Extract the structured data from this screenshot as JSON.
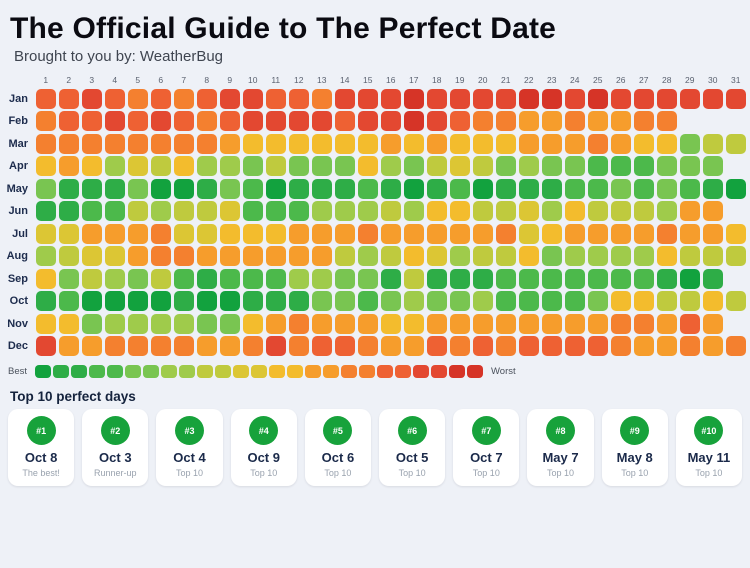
{
  "header": {
    "title": "The Official Guide to The Perfect Date",
    "subtitle": "Brought to you by: WeatherBug"
  },
  "legend": {
    "best_label": "Best",
    "worst_label": "Worst",
    "steps": 25
  },
  "top10": {
    "heading": "Top 10 perfect days",
    "badge_color": "#17a23b",
    "cards": [
      {
        "rank": "#1",
        "date": "Oct 8",
        "note": "The best!"
      },
      {
        "rank": "#2",
        "date": "Oct 3",
        "note": "Runner-up"
      },
      {
        "rank": "#3",
        "date": "Oct 4",
        "note": "Top 10"
      },
      {
        "rank": "#4",
        "date": "Oct 9",
        "note": "Top 10"
      },
      {
        "rank": "#5",
        "date": "Oct 6",
        "note": "Top 10"
      },
      {
        "rank": "#6",
        "date": "Oct 5",
        "note": "Top 10"
      },
      {
        "rank": "#7",
        "date": "Oct 7",
        "note": "Top 10"
      },
      {
        "rank": "#8",
        "date": "May 7",
        "note": "Top 10"
      },
      {
        "rank": "#9",
        "date": "May 8",
        "note": "Top 10"
      },
      {
        "rank": "#10",
        "date": "May 11",
        "note": "Top 10"
      }
    ]
  },
  "chart_data": {
    "type": "heatmap",
    "title": "The Official Guide to The Perfect Date",
    "x_labels": [
      "1",
      "2",
      "3",
      "4",
      "5",
      "6",
      "7",
      "8",
      "9",
      "10",
      "11",
      "12",
      "13",
      "14",
      "15",
      "16",
      "17",
      "18",
      "19",
      "20",
      "21",
      "22",
      "23",
      "24",
      "25",
      "26",
      "27",
      "28",
      "29",
      "30",
      "31"
    ],
    "y_labels": [
      "Jan",
      "Feb",
      "Mar",
      "Apr",
      "May",
      "Jun",
      "Jul",
      "Aug",
      "Sep",
      "Oct",
      "Nov",
      "Dec"
    ],
    "scale": {
      "best": 0,
      "worst": 12,
      "palette": [
        "#12a23e",
        "#2ead47",
        "#4cb94b",
        "#79c551",
        "#9fcb4b",
        "#bfca3e",
        "#dcc634",
        "#f3bc2d",
        "#f69d2c",
        "#f4802f",
        "#ee6133",
        "#e34831",
        "#d63427"
      ]
    },
    "values": [
      [
        10,
        10,
        11,
        10,
        9,
        10,
        9,
        10,
        11,
        11,
        10,
        10,
        9,
        11,
        11,
        11,
        12,
        11,
        11,
        11,
        11,
        12,
        12,
        11,
        12,
        11,
        11,
        11,
        11,
        11,
        11
      ],
      [
        9,
        10,
        10,
        11,
        10,
        11,
        10,
        9,
        10,
        11,
        11,
        11,
        11,
        10,
        11,
        11,
        12,
        11,
        10,
        9,
        9,
        8,
        8,
        9,
        8,
        8,
        9,
        9
      ],
      [
        9,
        9,
        9,
        9,
        9,
        9,
        9,
        9,
        8,
        7,
        7,
        7,
        7,
        7,
        7,
        8,
        7,
        8,
        7,
        7,
        7,
        8,
        8,
        8,
        9,
        8,
        7,
        7,
        3,
        5,
        5
      ],
      [
        7,
        8,
        7,
        4,
        6,
        5,
        7,
        4,
        4,
        3,
        5,
        3,
        3,
        3,
        7,
        4,
        3,
        5,
        6,
        5,
        3,
        4,
        3,
        3,
        2,
        2,
        2,
        3,
        3,
        3
      ],
      [
        3,
        1,
        1,
        1,
        3,
        0,
        0,
        1,
        3,
        2,
        0,
        1,
        1,
        1,
        2,
        1,
        0,
        1,
        2,
        0,
        1,
        1,
        1,
        2,
        2,
        3,
        2,
        3,
        2,
        1,
        0
      ],
      [
        1,
        1,
        2,
        2,
        5,
        4,
        5,
        5,
        6,
        2,
        2,
        2,
        4,
        4,
        4,
        5,
        4,
        7,
        7,
        5,
        5,
        6,
        4,
        7,
        5,
        5,
        5,
        4,
        8,
        8
      ],
      [
        6,
        6,
        8,
        8,
        8,
        9,
        6,
        6,
        7,
        7,
        7,
        8,
        8,
        8,
        9,
        8,
        8,
        8,
        8,
        8,
        9,
        6,
        7,
        8,
        8,
        8,
        8,
        9,
        8,
        8,
        7
      ],
      [
        4,
        5,
        6,
        6,
        8,
        9,
        9,
        8,
        8,
        8,
        8,
        8,
        8,
        5,
        4,
        5,
        7,
        6,
        4,
        5,
        5,
        7,
        3,
        4,
        4,
        4,
        4,
        7,
        5,
        5,
        5
      ],
      [
        7,
        3,
        5,
        4,
        3,
        5,
        2,
        1,
        2,
        2,
        2,
        4,
        4,
        3,
        3,
        1,
        5,
        1,
        1,
        1,
        2,
        2,
        2,
        2,
        2,
        2,
        2,
        1,
        0,
        1
      ],
      [
        1,
        2,
        0,
        0,
        0,
        0,
        1,
        0,
        0,
        1,
        1,
        1,
        3,
        3,
        2,
        3,
        4,
        3,
        3,
        4,
        2,
        2,
        2,
        2,
        3,
        7,
        7,
        5,
        5,
        7,
        5
      ],
      [
        7,
        7,
        3,
        4,
        4,
        4,
        4,
        3,
        3,
        7,
        8,
        9,
        8,
        8,
        8,
        7,
        7,
        8,
        8,
        8,
        8,
        8,
        8,
        8,
        8,
        9,
        9,
        8,
        10,
        8
      ],
      [
        11,
        8,
        8,
        9,
        9,
        9,
        9,
        8,
        8,
        9,
        11,
        9,
        10,
        10,
        9,
        8,
        8,
        10,
        9,
        10,
        9,
        10,
        10,
        10,
        10,
        9,
        8,
        8,
        9,
        8,
        9
      ]
    ],
    "legend": {
      "left": "Best",
      "right": "Worst",
      "position": "bottom"
    },
    "grid": false
  }
}
